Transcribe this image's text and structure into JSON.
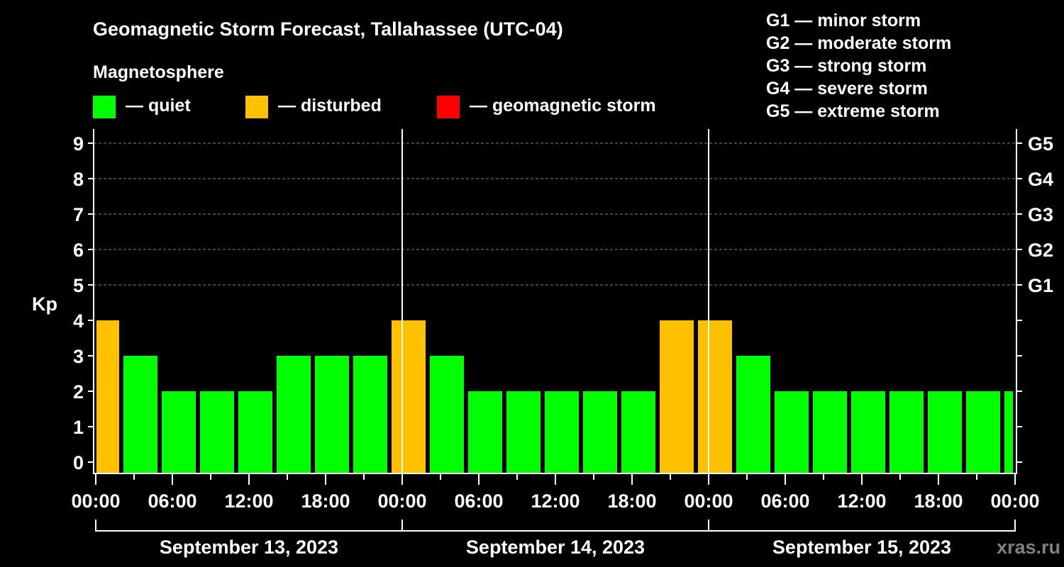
{
  "chart_data": {
    "type": "bar",
    "title": "Geomagnetic Storm Forecast, Tallahassee (UTC-04)",
    "legend_title": "Magnetosphere",
    "legend": [
      {
        "label": "— quiet",
        "color": "#00ff00"
      },
      {
        "label": "— disturbed",
        "color": "#ffc000"
      },
      {
        "label": "— geomagnetic storm",
        "color": "#ff0000"
      }
    ],
    "storm_scale": [
      "G1 — minor storm",
      "G2 — moderate storm",
      "G3 — strong storm",
      "G4 — severe storm",
      "G5 — extreme storm"
    ],
    "ylabel": "Kp",
    "ylim": [
      0,
      9
    ],
    "yticks": [
      "0",
      "1",
      "2",
      "3",
      "4",
      "5",
      "6",
      "7",
      "8",
      "9"
    ],
    "right_ticks": [
      {
        "kp": 5,
        "label": "G1"
      },
      {
        "kp": 6,
        "label": "G2"
      },
      {
        "kp": 7,
        "label": "G3"
      },
      {
        "kp": 8,
        "label": "G4"
      },
      {
        "kp": 9,
        "label": "G5"
      }
    ],
    "xticks": [
      "00:00",
      "06:00",
      "12:00",
      "18:00",
      "00:00",
      "06:00",
      "12:00",
      "18:00",
      "00:00",
      "06:00",
      "12:00",
      "18:00",
      "00:00"
    ],
    "days": [
      "September 13, 2023",
      "September 14, 2023",
      "September 15, 2023"
    ],
    "bar_interval_hours": 3,
    "first_bar_start_hour": -1,
    "values": [
      4,
      3,
      2,
      2,
      2,
      3,
      3,
      3,
      4,
      3,
      2,
      2,
      2,
      2,
      2,
      4,
      4,
      3,
      2,
      2,
      2,
      2,
      2,
      2,
      2
    ],
    "grid": "dashed at Kp 5-9",
    "watermark": "xras.ru"
  }
}
